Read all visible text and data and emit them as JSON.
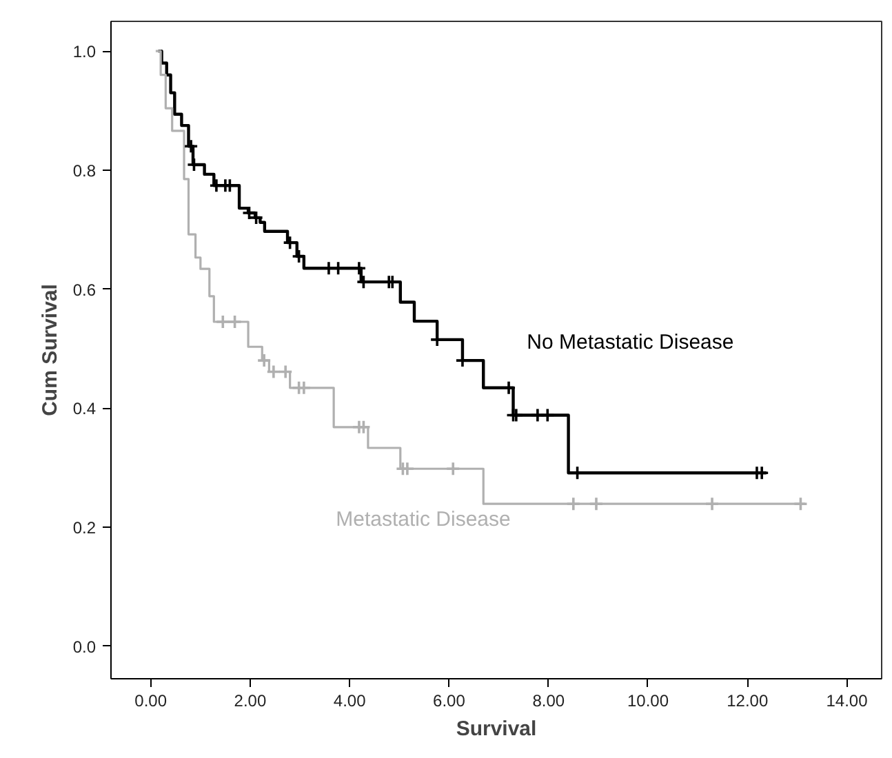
{
  "chart_data": {
    "type": "step",
    "xlabel": "Survival",
    "ylabel": "Cum Survival",
    "xlim": [
      -0.8,
      14.7
    ],
    "ylim": [
      -0.055,
      1.05
    ],
    "xticks": [
      {
        "value": 0,
        "label": "0.00"
      },
      {
        "value": 2,
        "label": "2.00"
      },
      {
        "value": 4,
        "label": "4.00"
      },
      {
        "value": 6,
        "label": "6.00"
      },
      {
        "value": 8,
        "label": "8.00"
      },
      {
        "value": 10,
        "label": "10.00"
      },
      {
        "value": 12,
        "label": "12.00"
      },
      {
        "value": 14,
        "label": "14.00"
      }
    ],
    "yticks": [
      {
        "value": 0,
        "label": "0.0"
      },
      {
        "value": 0.2,
        "label": "0.2"
      },
      {
        "value": 0.4,
        "label": "0.4"
      },
      {
        "value": 0.6,
        "label": "0.6"
      },
      {
        "value": 0.8,
        "label": "0.8"
      },
      {
        "value": 1.0,
        "label": "1.0"
      }
    ],
    "grid": false,
    "series": [
      {
        "name": "No Metastatic Disease",
        "color": "#000000",
        "x": [
          0.15,
          0.22,
          0.32,
          0.4,
          0.48,
          0.62,
          0.76,
          0.85,
          1.08,
          1.27,
          1.78,
          1.96,
          2.1,
          2.2,
          2.29,
          2.75,
          2.94,
          3.08,
          4.23,
          5.02,
          5.3,
          5.76,
          6.27,
          6.69,
          7.29,
          8.4,
          12.38
        ],
        "values": [
          1.0,
          0.98,
          0.96,
          0.93,
          0.894,
          0.875,
          0.84,
          0.809,
          0.793,
          0.774,
          0.736,
          0.728,
          0.72,
          0.712,
          0.697,
          0.678,
          0.655,
          0.635,
          0.612,
          0.578,
          0.546,
          0.515,
          0.48,
          0.434,
          0.388,
          0.291,
          0.291
        ]
      },
      {
        "name": "Metastatic Disease",
        "color": "#b0b0b0",
        "x": [
          0.1,
          0.2,
          0.3,
          0.43,
          0.67,
          0.76,
          0.9,
          1.0,
          1.18,
          1.27,
          1.96,
          2.24,
          2.38,
          2.8,
          3.68,
          4.37,
          5.02,
          6.69,
          13.16
        ],
        "values": [
          1.0,
          0.96,
          0.904,
          0.866,
          0.785,
          0.692,
          0.653,
          0.634,
          0.588,
          0.545,
          0.503,
          0.48,
          0.461,
          0.434,
          0.368,
          0.333,
          0.298,
          0.239,
          0.239
        ]
      },
      {
        "type": "scatter",
        "marker": "cross",
        "color": "#000000",
        "x": [
          0.81,
          0.87,
          1.32,
          1.5,
          1.59,
          1.98,
          2.12,
          2.8,
          2.98,
          3.58,
          3.77,
          4.19,
          4.28,
          4.79,
          4.86,
          5.76,
          6.27,
          7.2,
          7.29,
          7.35,
          7.78,
          7.98,
          8.58,
          12.19,
          12.29
        ],
        "values": [
          0.84,
          0.809,
          0.774,
          0.774,
          0.774,
          0.728,
          0.72,
          0.678,
          0.655,
          0.635,
          0.635,
          0.635,
          0.612,
          0.612,
          0.612,
          0.515,
          0.48,
          0.434,
          0.388,
          0.388,
          0.388,
          0.388,
          0.291,
          0.291,
          0.291
        ]
      },
      {
        "type": "scatter",
        "marker": "cross",
        "color": "#b0b0b0",
        "x": [
          1.45,
          1.69,
          2.28,
          2.47,
          2.71,
          2.98,
          3.08,
          4.19,
          4.28,
          5.07,
          5.16,
          6.08,
          8.5,
          8.96,
          11.29,
          13.07
        ],
        "values": [
          0.545,
          0.545,
          0.48,
          0.461,
          0.461,
          0.434,
          0.434,
          0.368,
          0.368,
          0.298,
          0.298,
          0.298,
          0.239,
          0.239,
          0.239,
          0.239
        ]
      }
    ]
  }
}
